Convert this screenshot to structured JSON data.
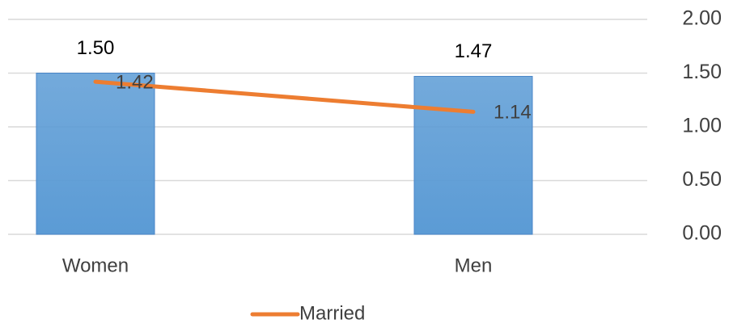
{
  "chart_data": {
    "type": "bar",
    "categories": [
      "Women",
      "Men"
    ],
    "series": [
      {
        "type": "bar",
        "color": "#5b9bd5",
        "values": [
          1.5,
          1.47
        ],
        "value_labels": [
          "1.50",
          "1.47"
        ]
      },
      {
        "type": "line",
        "name": "Married",
        "color": "#ed7d31",
        "values": [
          1.42,
          1.14
        ],
        "value_labels": [
          "1.42",
          "1.14"
        ]
      }
    ],
    "ylim": [
      0,
      2
    ],
    "yticks": [
      {
        "value": 0,
        "label": "0.00"
      },
      {
        "value": 0.5,
        "label": "0.50"
      },
      {
        "value": 1,
        "label": "1.00"
      },
      {
        "value": 1.5,
        "label": "1.50"
      },
      {
        "value": 2,
        "label": "2.00"
      }
    ],
    "grid": true,
    "legend": "bottom"
  }
}
